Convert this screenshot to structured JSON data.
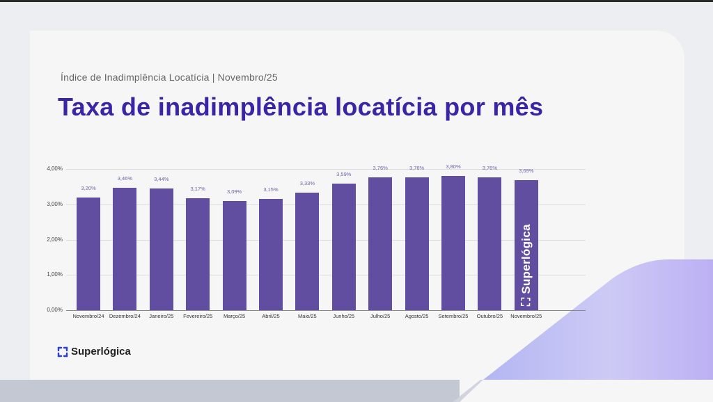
{
  "header": {
    "subtitle": "Índice de Inadimplência Locatícia | Novembro/25",
    "title": "Taxa de inadimplência locatícia por mês"
  },
  "brand": {
    "name": "Superlógica",
    "watermark": "Superlógica",
    "logo_icon": "superlogica-logo-icon"
  },
  "colors": {
    "bar": "#614ea0",
    "title": "#3b24a6",
    "label": "#6c5fa8",
    "accent_gradient": [
      "#b5b8f2",
      "#c9c6f4",
      "#bdb1f2"
    ]
  },
  "chart": {
    "y_ticks": [
      "4,00%",
      "3,00%",
      "2,00%",
      "1,00%",
      "0,00%"
    ],
    "bars": [
      {
        "category": "Novembro/24",
        "value": 3.2,
        "label": "3,20%"
      },
      {
        "category": "Dezembro/24",
        "value": 3.46,
        "label": "3,46%"
      },
      {
        "category": "Janeiro/25",
        "value": 3.44,
        "label": "3,44%"
      },
      {
        "category": "Fevereiro/25",
        "value": 3.17,
        "label": "3,17%"
      },
      {
        "category": "Março/25",
        "value": 3.09,
        "label": "3,09%"
      },
      {
        "category": "Abril/25",
        "value": 3.15,
        "label": "3,15%"
      },
      {
        "category": "Maio/25",
        "value": 3.33,
        "label": "3,33%"
      },
      {
        "category": "Junho/25",
        "value": 3.59,
        "label": "3,59%"
      },
      {
        "category": "Julho/25",
        "value": 3.76,
        "label": "3,76%"
      },
      {
        "category": "Agosto/25",
        "value": 3.76,
        "label": "3,76%"
      },
      {
        "category": "Setembro/25",
        "value": 3.8,
        "label": "3,80%"
      },
      {
        "category": "Outubro/25",
        "value": 3.76,
        "label": "3,76%"
      },
      {
        "category": "Novembro/25",
        "value": 3.69,
        "label": "3,69%"
      }
    ]
  },
  "chart_data": {
    "type": "bar",
    "title": "Taxa de inadimplência locatícia por mês",
    "subtitle": "Índice de Inadimplência Locatícia | Novembro/25",
    "categories": [
      "Novembro/24",
      "Dezembro/24",
      "Janeiro/25",
      "Fevereiro/25",
      "Março/25",
      "Abril/25",
      "Maio/25",
      "Junho/25",
      "Julho/25",
      "Agosto/25",
      "Setembro/25",
      "Outubro/25",
      "Novembro/25"
    ],
    "values": [
      3.2,
      3.46,
      3.44,
      3.17,
      3.09,
      3.15,
      3.33,
      3.59,
      3.76,
      3.76,
      3.8,
      3.76,
      3.69
    ],
    "value_labels": [
      "3,20%",
      "3,46%",
      "3,44%",
      "3,17%",
      "3,09%",
      "3,15%",
      "3,33%",
      "3,59%",
      "3,76%",
      "3,76%",
      "3,80%",
      "3,76%",
      "3,69%"
    ],
    "xlabel": "",
    "ylabel": "",
    "ylim": [
      0,
      4
    ],
    "y_ticks": [
      "0,00%",
      "1,00%",
      "2,00%",
      "3,00%",
      "4,00%"
    ],
    "grid": true,
    "legend": "none",
    "annotations": [
      "Superlógica watermark on last bar"
    ]
  }
}
